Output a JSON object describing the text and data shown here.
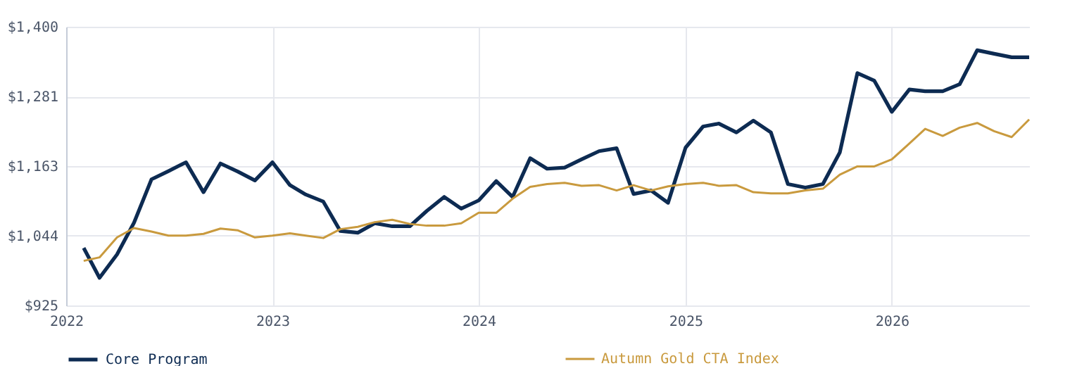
{
  "chart_data": {
    "type": "line",
    "x": [
      "2022-02",
      "2022-03",
      "2022-04",
      "2022-05",
      "2022-06",
      "2022-07",
      "2022-08",
      "2022-09",
      "2022-10",
      "2022-11",
      "2022-12",
      "2023-01",
      "2023-02",
      "2023-03",
      "2023-04",
      "2023-05",
      "2023-06",
      "2023-07",
      "2023-08",
      "2023-09",
      "2023-10",
      "2023-11",
      "2023-12",
      "2024-01",
      "2024-02",
      "2024-03",
      "2024-04",
      "2024-05",
      "2024-06",
      "2024-07",
      "2024-08",
      "2024-09",
      "2024-10",
      "2024-11",
      "2024-12",
      "2025-01",
      "2025-02",
      "2025-03",
      "2025-04",
      "2025-05",
      "2025-06",
      "2025-07",
      "2025-08",
      "2025-09",
      "2025-10",
      "2025-11",
      "2025-12",
      "2026-01",
      "2026-02",
      "2026-03",
      "2026-04",
      "2026-05",
      "2026-06",
      "2026-07",
      "2026-08",
      "2026-09"
    ],
    "series": [
      {
        "name": "Core Program",
        "color": "#0d2b52",
        "values": [
          1023,
          972,
          1012,
          1066,
          1140,
          1154,
          1169,
          1118,
          1167,
          1153,
          1138,
          1169,
          1130,
          1114,
          1102,
          1052,
          1049,
          1065,
          1060,
          1060,
          1086,
          1110,
          1090,
          1104,
          1137,
          1110,
          1176,
          1158,
          1160,
          1174,
          1188,
          1193,
          1115,
          1121,
          1100,
          1194,
          1230,
          1235,
          1220,
          1240,
          1220,
          1132,
          1126,
          1132,
          1186,
          1321,
          1308,
          1255,
          1293,
          1290,
          1290,
          1302,
          1360,
          1354,
          1348,
          1348
        ]
      },
      {
        "name": "Autumn Gold CTA Index",
        "color": "#c99a3e",
        "values": [
          1001,
          1007,
          1041,
          1057,
          1051,
          1044,
          1044,
          1047,
          1056,
          1053,
          1041,
          1044,
          1048,
          1044,
          1040,
          1055,
          1059,
          1067,
          1071,
          1064,
          1061,
          1061,
          1065,
          1083,
          1083,
          1107,
          1127,
          1132,
          1134,
          1129,
          1130,
          1121,
          1130,
          1121,
          1128,
          1132,
          1134,
          1129,
          1130,
          1118,
          1116,
          1116,
          1121,
          1124,
          1148,
          1162,
          1162,
          1174,
          1201,
          1226,
          1214,
          1228,
          1236,
          1222,
          1212,
          1242
        ]
      }
    ],
    "xlim": [
      "2022-01",
      "2026-09"
    ],
    "xticks": [
      "2022",
      "2023",
      "2024",
      "2025",
      "2026"
    ],
    "ylim": [
      925,
      1400
    ],
    "yticks": [
      {
        "value": 925,
        "label": "$925"
      },
      {
        "value": 1044,
        "label": "$1,044"
      },
      {
        "value": 1163,
        "label": "$1,163"
      },
      {
        "value": 1281,
        "label": "$1,281"
      },
      {
        "value": 1400,
        "label": "$1,400"
      }
    ],
    "grid": true,
    "legend": "bottom",
    "line_style": "solid",
    "marker": "none"
  }
}
